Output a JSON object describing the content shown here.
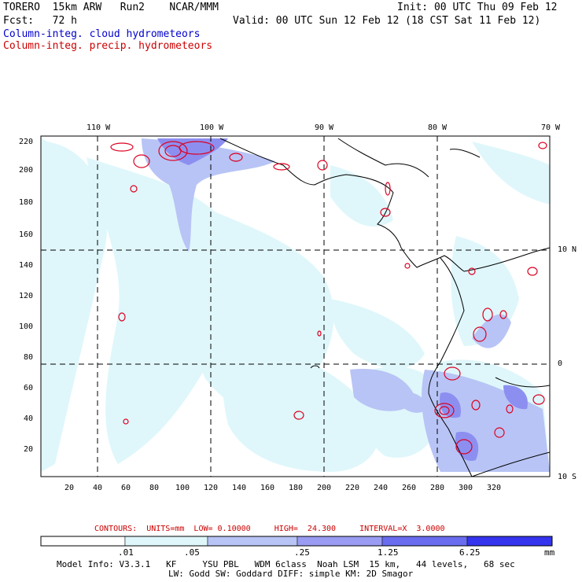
{
  "header": {
    "model": "TORERO  15km ARW   Run2    NCAR/MMM",
    "init": "Init: 00 UTC Thu 09 Feb 12",
    "fcst": "Fcst:   72 h",
    "valid": "Valid: 00 UTC Sun 12 Feb 12 (18 CST Sat 11 Feb 12)",
    "field1": "Column-integ. cloud hydrometeors",
    "field2": "Column-integ. precip. hydrometeors"
  },
  "map": {
    "lon_labels": [
      "110 W",
      "100 W",
      "90 W",
      "80 W",
      "70 W"
    ],
    "lat_labels": [
      "10 N",
      "0",
      "10 S"
    ],
    "x_ticks": [
      "20",
      "40",
      "60",
      "80",
      "100",
      "120",
      "140",
      "160",
      "180",
      "200",
      "220",
      "240",
      "260",
      "280",
      "300",
      "320"
    ],
    "y_ticks": [
      "220",
      "200",
      "180",
      "160",
      "140",
      "120",
      "100",
      "80",
      "60",
      "40",
      "20"
    ],
    "colors": {
      "cloud_light": "#dff7fb",
      "cloud_mid": "#b8c4f5",
      "cloud_dark": "#8d8ff0",
      "precip_contour": "#dd0022"
    }
  },
  "contours_info": {
    "text": "CONTOURS:  UNITS=mm  LOW= 0.10000     HIGH=  24.300     INTERVAL=X  3.0000"
  },
  "colorbar": {
    "levels": [
      ".01",
      ".05",
      ".25",
      "1.25",
      "6.25"
    ],
    "unit": "mm",
    "colors": [
      "#ffffff",
      "#dff7fb",
      "#b8c4f5",
      "#9a9cf3",
      "#6a6cf0",
      "#3434ee",
      "#1010e0"
    ]
  },
  "footer": {
    "line1": "Model Info: V3.3.1   KF     YSU PBL   WDM 6class  Noah LSM  15 km,   44 levels,   68 sec",
    "line2": "LW: Godd SW: Goddard DIFF: simple KM: 2D Smagor"
  }
}
